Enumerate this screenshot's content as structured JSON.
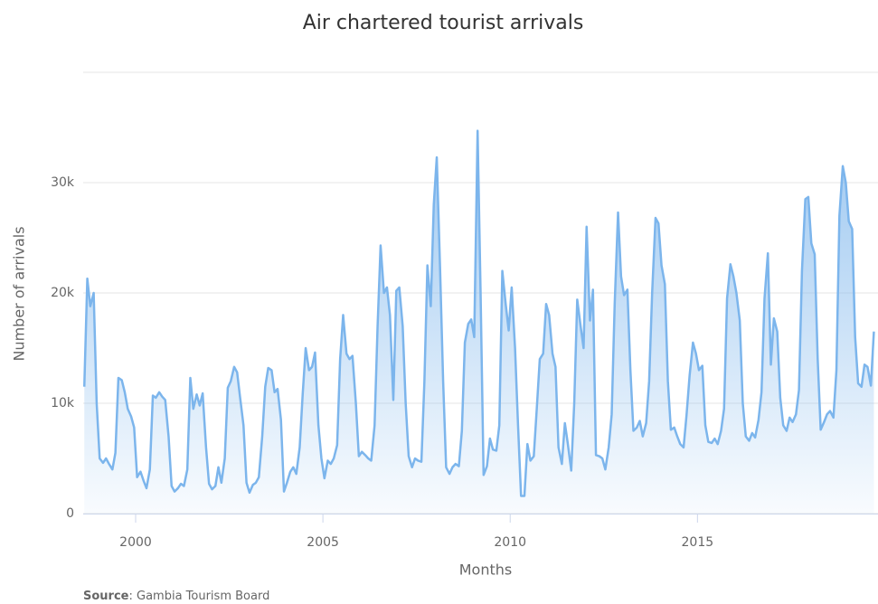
{
  "chart_data": {
    "type": "area",
    "title": "Air chartered tourist arrivals",
    "x_label": "Months",
    "y_label": "Number of arrivals",
    "credit_label": "Source",
    "credit_text": ": Gambia Tourism Board",
    "color": "#7cb5ec",
    "grid": true,
    "xlim": [
      1998.6,
      2019.82
    ],
    "xticks": [
      2000,
      2005,
      2010,
      2015
    ],
    "ylim": [
      0,
      40000
    ],
    "yticks": [
      0,
      {
        "value": 10000,
        "label": "10k"
      },
      {
        "value": 20000,
        "label": "20k"
      },
      {
        "value": 30000,
        "label": "30k"
      }
    ],
    "x": [
      1998.63,
      1998.71,
      1998.79,
      1998.88,
      1998.96,
      1999.04,
      1999.13,
      1999.21,
      1999.29,
      1999.38,
      1999.46,
      1999.54,
      1999.63,
      1999.71,
      1999.79,
      1999.88,
      1999.96,
      2000.04,
      2000.13,
      2000.21,
      2000.29,
      2000.38,
      2000.46,
      2000.54,
      2000.63,
      2000.71,
      2000.79,
      2000.88,
      2000.96,
      2001.04,
      2001.13,
      2001.21,
      2001.29,
      2001.38,
      2001.46,
      2001.54,
      2001.63,
      2001.71,
      2001.79,
      2001.88,
      2001.96,
      2002.04,
      2002.13,
      2002.21,
      2002.29,
      2002.38,
      2002.46,
      2002.54,
      2002.63,
      2002.71,
      2002.79,
      2002.88,
      2002.96,
      2003.04,
      2003.13,
      2003.21,
      2003.29,
      2003.38,
      2003.46,
      2003.54,
      2003.63,
      2003.71,
      2003.79,
      2003.88,
      2003.96,
      2004.04,
      2004.13,
      2004.21,
      2004.29,
      2004.38,
      2004.46,
      2004.54,
      2004.63,
      2004.71,
      2004.79,
      2004.88,
      2004.96,
      2005.04,
      2005.13,
      2005.21,
      2005.29,
      2005.38,
      2005.46,
      2005.54,
      2005.63,
      2005.71,
      2005.79,
      2005.88,
      2005.96,
      2006.04,
      2006.13,
      2006.21,
      2006.29,
      2006.38,
      2006.46,
      2006.54,
      2006.63,
      2006.71,
      2006.79,
      2006.88,
      2006.96,
      2007.04,
      2007.13,
      2007.21,
      2007.29,
      2007.38,
      2007.46,
      2007.54,
      2007.63,
      2007.71,
      2007.79,
      2007.88,
      2007.96,
      2008.04,
      2008.13,
      2008.21,
      2008.29,
      2008.38,
      2008.46,
      2008.54,
      2008.63,
      2008.71,
      2008.79,
      2008.88,
      2008.96,
      2009.04,
      2009.13,
      2009.21,
      2009.29,
      2009.38,
      2009.46,
      2009.54,
      2009.63,
      2009.71,
      2009.79,
      2009.88,
      2009.96,
      2010.04,
      2010.13,
      2010.21,
      2010.29,
      2010.38,
      2010.46,
      2010.54,
      2010.63,
      2010.71,
      2010.79,
      2010.88,
      2010.96,
      2011.04,
      2011.13,
      2011.21,
      2011.29,
      2011.38,
      2011.46,
      2011.54,
      2011.63,
      2011.71,
      2011.79,
      2011.88,
      2011.96,
      2012.04,
      2012.13,
      2012.21,
      2012.29,
      2012.38,
      2012.46,
      2012.54,
      2012.63,
      2012.71,
      2012.79,
      2012.88,
      2012.96,
      2013.04,
      2013.13,
      2013.21,
      2013.29,
      2013.38,
      2013.46,
      2013.54,
      2013.63,
      2013.71,
      2013.79,
      2013.88,
      2013.96,
      2014.04,
      2014.13,
      2014.21,
      2014.29,
      2014.38,
      2014.46,
      2014.54,
      2014.63,
      2014.71,
      2014.79,
      2014.88,
      2014.96,
      2015.04,
      2015.13,
      2015.21,
      2015.29,
      2015.38,
      2015.46,
      2015.54,
      2015.63,
      2015.71,
      2015.79,
      2015.88,
      2015.96,
      2016.04,
      2016.13,
      2016.21,
      2016.29,
      2016.38,
      2016.46,
      2016.54,
      2016.63,
      2016.71,
      2016.79,
      2016.88,
      2016.96,
      2017.04,
      2017.13,
      2017.21,
      2017.29,
      2017.38,
      2017.46,
      2017.54,
      2017.63,
      2017.71,
      2017.79,
      2017.88,
      2017.96,
      2018.04,
      2018.13,
      2018.21,
      2018.29,
      2018.38,
      2018.46,
      2018.54,
      2018.63,
      2018.71,
      2018.79,
      2018.88,
      2018.96,
      2019.04,
      2019.13,
      2019.21,
      2019.29,
      2019.38,
      2019.46,
      2019.54,
      2019.63,
      2019.71
    ],
    "values": [
      11500,
      21300,
      18800,
      20000,
      10000,
      5000,
      4600,
      5000,
      4500,
      4000,
      5500,
      12300,
      12100,
      11000,
      9500,
      8800,
      7800,
      3300,
      3800,
      3000,
      2300,
      4000,
      10700,
      10500,
      11000,
      10600,
      10300,
      7000,
      2500,
      2000,
      2300,
      2700,
      2500,
      4000,
      12300,
      9500,
      10800,
      9800,
      10900,
      6000,
      2700,
      2200,
      2500,
      4200,
      2800,
      5000,
      11400,
      12000,
      13300,
      12800,
      10500,
      8000,
      2800,
      1900,
      2600,
      2800,
      3300,
      7000,
      11500,
      13200,
      13000,
      11000,
      11300,
      8500,
      2000,
      2800,
      3800,
      4200,
      3600,
      6000,
      10800,
      15000,
      13000,
      13300,
      14600,
      8000,
      5000,
      3200,
      4800,
      4500,
      5000,
      6200,
      14000,
      18000,
      14500,
      14000,
      14300,
      10000,
      5200,
      5600,
      5300,
      5000,
      4800,
      8000,
      17000,
      24300,
      20000,
      20500,
      18000,
      10300,
      20200,
      20500,
      17000,
      10000,
      5200,
      4200,
      5000,
      4800,
      4700,
      12000,
      22500,
      18800,
      28000,
      32300,
      22000,
      12000,
      4200,
      3600,
      4200,
      4500,
      4300,
      7500,
      15500,
      17200,
      17600,
      16000,
      34700,
      20000,
      3500,
      4300,
      6800,
      5800,
      5700,
      8000,
      22000,
      19000,
      16600,
      20500,
      15000,
      8000,
      1600,
      1600,
      6300,
      4800,
      5200,
      9500,
      14000,
      14500,
      19000,
      18000,
      14500,
      13300,
      6000,
      4500,
      8200,
      6300,
      3900,
      10000,
      19400,
      17000,
      15000,
      26000,
      17500,
      20300,
      5300,
      5200,
      5000,
      4000,
      6000,
      9000,
      19000,
      27300,
      21500,
      19800,
      20300,
      13000,
      7500,
      7800,
      8400,
      7000,
      8200,
      12000,
      20000,
      26800,
      26300,
      22500,
      20800,
      12000,
      7600,
      7800,
      7000,
      6300,
      6000,
      9000,
      12500,
      15500,
      14500,
      13000,
      13400,
      8000,
      6500,
      6400,
      6800,
      6300,
      7500,
      9500,
      19500,
      22600,
      21500,
      20000,
      17500,
      10000,
      7000,
      6600,
      7300,
      6900,
      8500,
      11000,
      19500,
      23600,
      13500,
      17700,
      16500,
      10500,
      8000,
      7500,
      8700,
      8300,
      9000,
      11200,
      22000,
      28500,
      28700,
      24500,
      23500,
      14000,
      7600,
      8300,
      9000,
      9300,
      8700,
      13000,
      27000,
      31500,
      30000,
      26500,
      25800,
      16000,
      11800,
      11500,
      13500,
      13300,
      11600,
      16500
    ]
  }
}
